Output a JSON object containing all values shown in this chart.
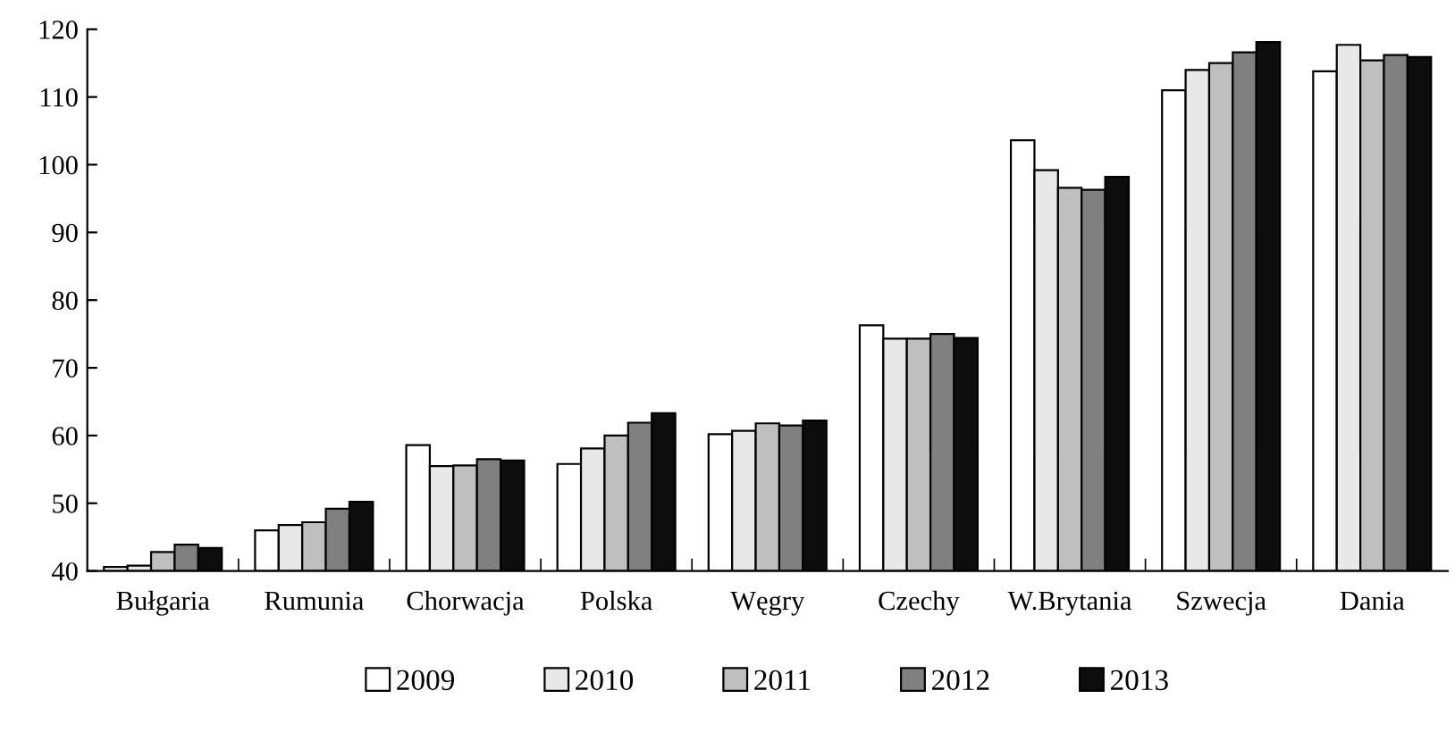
{
  "chart_data": {
    "type": "bar",
    "categories": [
      "Bułgaria",
      "Rumunia",
      "Chorwacja",
      "Polska",
      "Węgry",
      "Czechy",
      "W.Brytania",
      "Szwecja",
      "Dania"
    ],
    "series": [
      {
        "name": "2009",
        "color": "#ffffff",
        "values": [
          40.6,
          46.0,
          58.6,
          55.8,
          60.2,
          76.3,
          103.6,
          111.0,
          113.8
        ]
      },
      {
        "name": "2010",
        "color": "#e8e8e8",
        "values": [
          40.8,
          46.8,
          55.5,
          58.1,
          60.7,
          74.3,
          99.2,
          114.0,
          117.7
        ]
      },
      {
        "name": "2011",
        "color": "#bfbfbf",
        "values": [
          42.8,
          47.2,
          55.6,
          60.0,
          61.8,
          74.3,
          96.6,
          115.0,
          115.4
        ]
      },
      {
        "name": "2012",
        "color": "#808080",
        "values": [
          43.9,
          49.2,
          56.5,
          61.9,
          61.5,
          75.0,
          96.3,
          116.6,
          116.2
        ]
      },
      {
        "name": "2013",
        "color": "#0d0d0d",
        "values": [
          43.4,
          50.2,
          56.3,
          63.3,
          62.2,
          74.4,
          98.2,
          118.1,
          115.9
        ]
      }
    ],
    "ylim": [
      40,
      120
    ],
    "yticks": [
      40,
      50,
      60,
      70,
      80,
      90,
      100,
      110,
      120
    ],
    "grid": false,
    "legend": "bottom"
  }
}
